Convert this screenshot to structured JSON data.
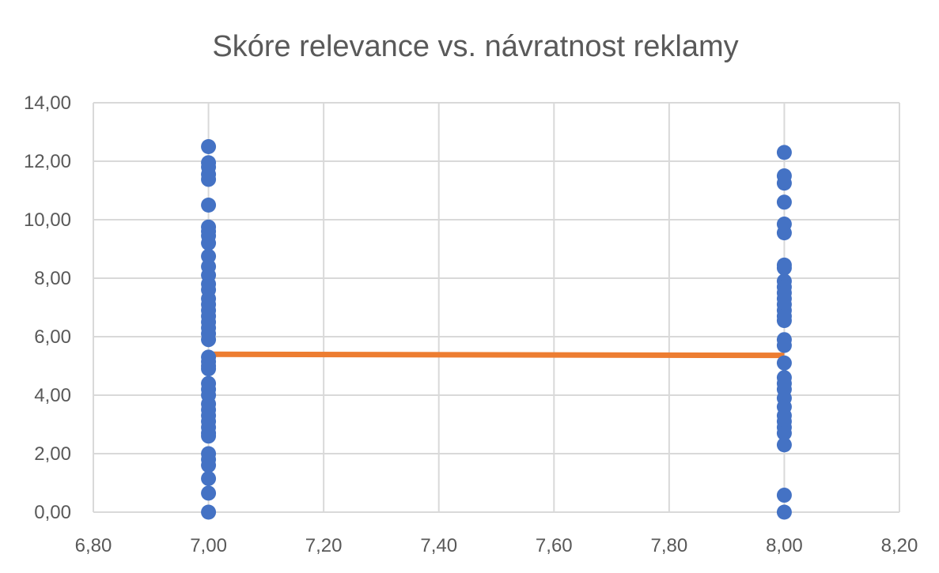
{
  "chart_data": {
    "type": "scatter",
    "title": "Skóre relevance vs. návratnost reklamy",
    "xlabel": "",
    "ylabel": "",
    "xlim": [
      6.8,
      8.2
    ],
    "ylim": [
      0,
      14
    ],
    "x_ticks": [
      "6,80",
      "7,00",
      "7,20",
      "7,40",
      "7,60",
      "7,80",
      "8,00",
      "8,20"
    ],
    "y_ticks": [
      "0,00",
      "2,00",
      "4,00",
      "6,00",
      "8,00",
      "10,00",
      "12,00",
      "14,00"
    ],
    "grid": true,
    "legend": "none",
    "colors": {
      "points": "#4472C4",
      "trendline": "#ED7D31",
      "grid": "#D9D9D9",
      "text": "#595959"
    },
    "series": [
      {
        "type": "scatter",
        "points": [
          [
            7.0,
            12.5
          ],
          [
            7.0,
            11.95
          ],
          [
            7.0,
            11.8
          ],
          [
            7.0,
            11.55
          ],
          [
            7.0,
            11.38
          ],
          [
            7.0,
            10.5
          ],
          [
            7.0,
            9.75
          ],
          [
            7.0,
            9.6
          ],
          [
            7.0,
            9.45
          ],
          [
            7.0,
            9.2
          ],
          [
            7.0,
            8.75
          ],
          [
            7.0,
            8.4
          ],
          [
            7.0,
            8.1
          ],
          [
            7.0,
            7.8
          ],
          [
            7.0,
            7.6
          ],
          [
            7.0,
            7.3
          ],
          [
            7.0,
            7.1
          ],
          [
            7.0,
            6.9
          ],
          [
            7.0,
            6.7
          ],
          [
            7.0,
            6.5
          ],
          [
            7.0,
            6.3
          ],
          [
            7.0,
            6.1
          ],
          [
            7.0,
            5.9
          ],
          [
            7.0,
            5.3
          ],
          [
            7.0,
            5.15
          ],
          [
            7.0,
            5.0
          ],
          [
            7.0,
            4.9
          ],
          [
            7.0,
            4.4
          ],
          [
            7.0,
            4.2
          ],
          [
            7.0,
            4.0
          ],
          [
            7.0,
            3.7
          ],
          [
            7.0,
            3.5
          ],
          [
            7.0,
            3.3
          ],
          [
            7.0,
            3.1
          ],
          [
            7.0,
            2.9
          ],
          [
            7.0,
            2.7
          ],
          [
            7.0,
            2.6
          ],
          [
            7.0,
            2.0
          ],
          [
            7.0,
            1.8
          ],
          [
            7.0,
            1.6
          ],
          [
            7.0,
            1.15
          ],
          [
            7.0,
            0.65
          ],
          [
            7.0,
            0.0
          ],
          [
            8.0,
            12.3
          ],
          [
            8.0,
            11.5
          ],
          [
            8.0,
            11.25
          ],
          [
            8.0,
            10.6
          ],
          [
            8.0,
            9.85
          ],
          [
            8.0,
            9.55
          ],
          [
            8.0,
            8.45
          ],
          [
            8.0,
            8.35
          ],
          [
            8.0,
            7.9
          ],
          [
            8.0,
            7.7
          ],
          [
            8.0,
            7.5
          ],
          [
            8.0,
            7.3
          ],
          [
            8.0,
            7.1
          ],
          [
            8.0,
            6.9
          ],
          [
            8.0,
            6.7
          ],
          [
            8.0,
            6.55
          ],
          [
            8.0,
            5.9
          ],
          [
            8.0,
            5.7
          ],
          [
            8.0,
            5.1
          ],
          [
            8.0,
            4.6
          ],
          [
            8.0,
            4.4
          ],
          [
            8.0,
            4.2
          ],
          [
            8.0,
            3.9
          ],
          [
            8.0,
            3.6
          ],
          [
            8.0,
            3.3
          ],
          [
            8.0,
            3.1
          ],
          [
            8.0,
            2.9
          ],
          [
            8.0,
            2.7
          ],
          [
            8.0,
            2.3
          ],
          [
            8.0,
            0.58
          ],
          [
            8.0,
            0.0
          ]
        ]
      },
      {
        "type": "trendline",
        "points": [
          [
            7.0,
            5.4
          ],
          [
            8.0,
            5.36
          ]
        ]
      }
    ]
  }
}
